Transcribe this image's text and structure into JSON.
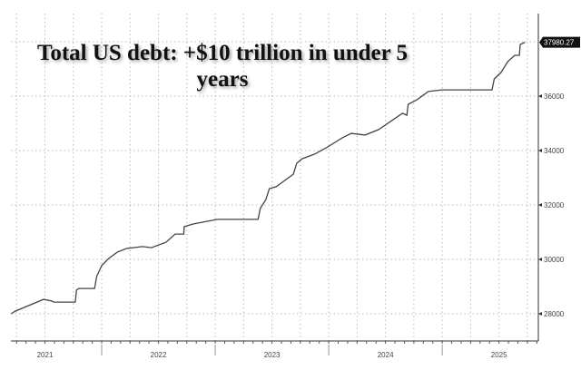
{
  "chart_data": {
    "type": "line",
    "title": "Total US debt: +$10 trillion in under 5 years",
    "xlabel": "",
    "ylabel": "",
    "x_tick_labels": [
      "2021",
      "2022",
      "2023",
      "2024",
      "2025"
    ],
    "y_tick_labels": [
      "28000",
      "30000",
      "32000",
      "34000",
      "36000"
    ],
    "y_ticks": [
      28000,
      30000,
      32000,
      34000,
      36000,
      38000
    ],
    "xlim": [
      "2021-03-15",
      "2025-11-06"
    ],
    "ylim": [
      27000,
      38000
    ],
    "y_axis_side": "right",
    "grid": "dotted, quarterly vertical and every 2000 horizontal",
    "last_value_label": "37980.27",
    "line_color": "#444444",
    "series": [
      {
        "points": [
          [
            "2021-03-15",
            28000
          ],
          [
            "2021-03-30",
            28100
          ],
          [
            "2021-06-28",
            28530
          ],
          [
            "2021-07-24",
            28470
          ],
          [
            "2021-07-31",
            28430
          ],
          [
            "2021-10-08",
            28430
          ],
          [
            "2021-10-12",
            28870
          ],
          [
            "2021-10-19",
            28930
          ],
          [
            "2021-12-09",
            28930
          ],
          [
            "2021-12-16",
            29370
          ],
          [
            "2022-01-01",
            29770
          ],
          [
            "2022-01-23",
            30030
          ],
          [
            "2022-02-21",
            30270
          ],
          [
            "2022-03-22",
            30400
          ],
          [
            "2022-05-12",
            30470
          ],
          [
            "2022-06-10",
            30430
          ],
          [
            "2022-07-27",
            30630
          ],
          [
            "2022-08-25",
            30930
          ],
          [
            "2022-09-22",
            30930
          ],
          [
            "2022-09-23",
            31200
          ],
          [
            "2022-10-22",
            31300
          ],
          [
            "2022-12-20",
            31430
          ],
          [
            "2023-01-08",
            31470
          ],
          [
            "2023-05-19",
            31470
          ],
          [
            "2023-05-26",
            31870
          ],
          [
            "2023-06-13",
            32200
          ],
          [
            "2023-06-24",
            32600
          ],
          [
            "2023-07-16",
            32670
          ],
          [
            "2023-09-09",
            33130
          ],
          [
            "2023-09-20",
            33530
          ],
          [
            "2023-10-08",
            33700
          ],
          [
            "2023-11-17",
            33870
          ],
          [
            "2023-12-24",
            34100
          ],
          [
            "2024-02-14",
            34470
          ],
          [
            "2024-03-14",
            34630
          ],
          [
            "2024-04-27",
            34570
          ],
          [
            "2024-06-10",
            34770
          ],
          [
            "2024-08-26",
            35370
          ],
          [
            "2024-09-09",
            35300
          ],
          [
            "2024-09-13",
            35700
          ],
          [
            "2024-10-12",
            35870
          ],
          [
            "2024-11-17",
            36170
          ],
          [
            "2025-01-01",
            36230
          ],
          [
            "2025-06-10",
            36230
          ],
          [
            "2025-06-17",
            36630
          ],
          [
            "2025-07-09",
            36870
          ],
          [
            "2025-07-31",
            37270
          ],
          [
            "2025-08-22",
            37500
          ],
          [
            "2025-09-06",
            37500
          ],
          [
            "2025-09-09",
            37900
          ],
          [
            "2025-09-24",
            37980.27
          ]
        ]
      }
    ]
  }
}
